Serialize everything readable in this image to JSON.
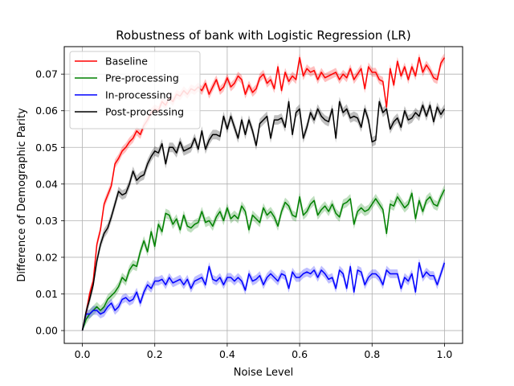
{
  "chart_data": {
    "type": "line",
    "title": "Robustness of bank with Logistic Regression (LR)",
    "xlabel": "Noise Level",
    "ylabel": "Difference of Demographic Parity",
    "xlim": [
      -0.05,
      1.05
    ],
    "ylim": [
      -0.0035,
      0.0775
    ],
    "xticks": [
      0.0,
      0.2,
      0.4,
      0.6,
      0.8,
      1.0
    ],
    "xtick_labels": [
      "0.0",
      "0.2",
      "0.4",
      "0.6",
      "0.8",
      "1.0"
    ],
    "yticks": [
      0.0,
      0.01,
      0.02,
      0.03,
      0.04,
      0.05,
      0.06,
      0.07
    ],
    "ytick_labels": [
      "0.00",
      "0.01",
      "0.02",
      "0.03",
      "0.04",
      "0.05",
      "0.06",
      "0.07"
    ],
    "grid": true,
    "legend_position": "top-left",
    "x": [
      0.0,
      0.01,
      0.02,
      0.03,
      0.04,
      0.05,
      0.06,
      0.07,
      0.08,
      0.09,
      0.1,
      0.11,
      0.12,
      0.13,
      0.14,
      0.15,
      0.16,
      0.17,
      0.18,
      0.19,
      0.2,
      0.21,
      0.22,
      0.23,
      0.24,
      0.25,
      0.26,
      0.27,
      0.28,
      0.29,
      0.3,
      0.31,
      0.32,
      0.33,
      0.34,
      0.35,
      0.36,
      0.37,
      0.38,
      0.39,
      0.4,
      0.41,
      0.42,
      0.43,
      0.44,
      0.45,
      0.46,
      0.47,
      0.48,
      0.49,
      0.5,
      0.51,
      0.52,
      0.53,
      0.54,
      0.55,
      0.56,
      0.57,
      0.58,
      0.59,
      0.6,
      0.61,
      0.62,
      0.63,
      0.64,
      0.65,
      0.66,
      0.67,
      0.68,
      0.69,
      0.7,
      0.71,
      0.72,
      0.73,
      0.74,
      0.75,
      0.76,
      0.77,
      0.78,
      0.79,
      0.8,
      0.81,
      0.82,
      0.83,
      0.84,
      0.85,
      0.86,
      0.87,
      0.88,
      0.89,
      0.9,
      0.91,
      0.92,
      0.93,
      0.94,
      0.95,
      0.96,
      0.97,
      0.98,
      0.99,
      1.0
    ],
    "series": [
      {
        "name": "Baseline",
        "color": "#ff0000",
        "band_halfwidth": 0.0012,
        "values": [
          0.0,
          0.0045,
          0.01,
          0.0135,
          0.0235,
          0.0275,
          0.0345,
          0.037,
          0.0395,
          0.0455,
          0.047,
          0.049,
          0.05,
          0.0515,
          0.0525,
          0.0545,
          0.0535,
          0.056,
          0.0575,
          0.0595,
          0.0605,
          0.06,
          0.0625,
          0.0615,
          0.0635,
          0.0625,
          0.0645,
          0.064,
          0.0655,
          0.0645,
          0.066,
          0.0655,
          0.0665,
          0.0655,
          0.0675,
          0.0645,
          0.0665,
          0.0685,
          0.0655,
          0.0665,
          0.069,
          0.0665,
          0.0675,
          0.0695,
          0.0685,
          0.0645,
          0.067,
          0.065,
          0.066,
          0.069,
          0.07,
          0.0675,
          0.0685,
          0.066,
          0.072,
          0.0655,
          0.0705,
          0.068,
          0.0695,
          0.0685,
          0.0745,
          0.0695,
          0.0715,
          0.0705,
          0.071,
          0.0685,
          0.0705,
          0.069,
          0.0695,
          0.07,
          0.0705,
          0.0685,
          0.07,
          0.069,
          0.0715,
          0.0685,
          0.07,
          0.0715,
          0.066,
          0.072,
          0.0705,
          0.0705,
          0.0685,
          0.068,
          0.061,
          0.0715,
          0.067,
          0.0735,
          0.0695,
          0.072,
          0.0685,
          0.072,
          0.0695,
          0.0745,
          0.0705,
          0.0725,
          0.071,
          0.069,
          0.0685,
          0.073,
          0.0745
        ]
      },
      {
        "name": "Pre-processing",
        "color": "#008000",
        "band_halfwidth": 0.0013,
        "values": [
          0.0,
          0.003,
          0.0045,
          0.0055,
          0.0065,
          0.0055,
          0.0065,
          0.0085,
          0.0095,
          0.0105,
          0.012,
          0.0145,
          0.0135,
          0.0165,
          0.018,
          0.0175,
          0.0215,
          0.0245,
          0.0215,
          0.027,
          0.023,
          0.029,
          0.027,
          0.032,
          0.0315,
          0.029,
          0.0305,
          0.0275,
          0.0315,
          0.0285,
          0.028,
          0.029,
          0.0295,
          0.0325,
          0.0295,
          0.03,
          0.0285,
          0.031,
          0.0325,
          0.03,
          0.0335,
          0.0305,
          0.0315,
          0.0305,
          0.034,
          0.0325,
          0.0275,
          0.0315,
          0.0305,
          0.0295,
          0.0335,
          0.0315,
          0.0325,
          0.031,
          0.0285,
          0.0325,
          0.035,
          0.034,
          0.0315,
          0.031,
          0.0365,
          0.0315,
          0.0325,
          0.0345,
          0.0355,
          0.0315,
          0.033,
          0.034,
          0.0325,
          0.0345,
          0.032,
          0.031,
          0.0345,
          0.035,
          0.036,
          0.029,
          0.0325,
          0.0335,
          0.0325,
          0.033,
          0.0345,
          0.036,
          0.0345,
          0.033,
          0.0265,
          0.0345,
          0.034,
          0.0365,
          0.035,
          0.0335,
          0.0345,
          0.0375,
          0.0305,
          0.0355,
          0.0325,
          0.0355,
          0.0365,
          0.0345,
          0.034,
          0.0365,
          0.0385
        ]
      },
      {
        "name": "In-processing",
        "color": "#0000ff",
        "band_halfwidth": 0.0012,
        "values": [
          0.0,
          0.0045,
          0.0045,
          0.0055,
          0.0055,
          0.0045,
          0.005,
          0.0065,
          0.0075,
          0.0055,
          0.0065,
          0.0085,
          0.009,
          0.008,
          0.0085,
          0.0105,
          0.0075,
          0.0105,
          0.0125,
          0.0115,
          0.0135,
          0.0135,
          0.014,
          0.0125,
          0.0145,
          0.013,
          0.0135,
          0.014,
          0.0125,
          0.014,
          0.0115,
          0.0135,
          0.014,
          0.0145,
          0.0125,
          0.0175,
          0.014,
          0.0135,
          0.0145,
          0.0125,
          0.0145,
          0.0145,
          0.0135,
          0.0145,
          0.0135,
          0.011,
          0.0155,
          0.0135,
          0.014,
          0.015,
          0.0125,
          0.0145,
          0.0155,
          0.0145,
          0.0135,
          0.0155,
          0.015,
          0.0115,
          0.016,
          0.0145,
          0.0145,
          0.0155,
          0.016,
          0.0155,
          0.0165,
          0.0145,
          0.0165,
          0.0155,
          0.014,
          0.0145,
          0.0115,
          0.0165,
          0.0155,
          0.0115,
          0.0175,
          0.0105,
          0.0165,
          0.016,
          0.0125,
          0.0145,
          0.0155,
          0.0155,
          0.0145,
          0.0125,
          0.0165,
          0.0155,
          0.0155,
          0.0155,
          0.0115,
          0.0145,
          0.0135,
          0.0155,
          0.0105,
          0.0185,
          0.0145,
          0.016,
          0.015,
          0.015,
          0.0125,
          0.0155,
          0.0185
        ]
      },
      {
        "name": "Post-processing",
        "color": "#000000",
        "band_halfwidth": 0.0013,
        "values": [
          0.0,
          0.005,
          0.0085,
          0.0125,
          0.019,
          0.0235,
          0.0265,
          0.028,
          0.031,
          0.0345,
          0.038,
          0.037,
          0.0375,
          0.04,
          0.0435,
          0.041,
          0.042,
          0.0425,
          0.0455,
          0.0475,
          0.049,
          0.0485,
          0.051,
          0.0455,
          0.05,
          0.05,
          0.0485,
          0.0515,
          0.049,
          0.0495,
          0.05,
          0.0525,
          0.0495,
          0.0545,
          0.0495,
          0.052,
          0.0535,
          0.0535,
          0.053,
          0.0585,
          0.055,
          0.0585,
          0.0555,
          0.0525,
          0.0575,
          0.0535,
          0.0575,
          0.0545,
          0.0505,
          0.0565,
          0.0575,
          0.0585,
          0.0525,
          0.0575,
          0.0575,
          0.058,
          0.0555,
          0.0625,
          0.0535,
          0.0595,
          0.0605,
          0.0525,
          0.0555,
          0.0595,
          0.0575,
          0.0605,
          0.0585,
          0.0575,
          0.057,
          0.0605,
          0.0525,
          0.0625,
          0.0595,
          0.0605,
          0.058,
          0.0585,
          0.058,
          0.0555,
          0.0605,
          0.0575,
          0.0515,
          0.052,
          0.0625,
          0.0595,
          0.0605,
          0.055,
          0.057,
          0.058,
          0.0555,
          0.06,
          0.0575,
          0.058,
          0.0595,
          0.0585,
          0.0615,
          0.0585,
          0.0615,
          0.057,
          0.061,
          0.059,
          0.0605
        ]
      }
    ]
  }
}
